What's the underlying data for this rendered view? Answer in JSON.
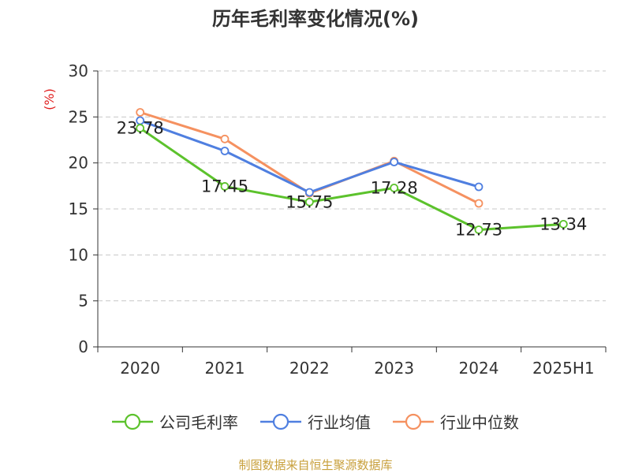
{
  "title": "历年毛利率变化情况(%)",
  "source": "制图数据来自恒生聚源数据库",
  "chart_data": {
    "type": "line",
    "title": "历年毛利率变化情况(%)",
    "ylabel": "(%)",
    "ylabel_color": "#e02020",
    "categories": [
      "2020",
      "2021",
      "2022",
      "2023",
      "2024",
      "2025H1"
    ],
    "ylim": [
      0,
      30
    ],
    "yticks": [
      0,
      5,
      10,
      15,
      20,
      25,
      30
    ],
    "grid": true,
    "legend_position": "bottom",
    "series": [
      {
        "name": "公司毛利率",
        "color": "#5cc22c",
        "values": [
          23.78,
          17.45,
          15.75,
          17.28,
          12.73,
          13.34
        ],
        "labels": true
      },
      {
        "name": "行业均值",
        "color": "#4f7fe0",
        "values": [
          24.6,
          21.3,
          16.8,
          20.1,
          17.4,
          null
        ],
        "labels": false
      },
      {
        "name": "行业中位数",
        "color": "#f59160",
        "values": [
          25.5,
          22.6,
          16.7,
          20.2,
          15.6,
          null
        ],
        "labels": false
      }
    ]
  }
}
